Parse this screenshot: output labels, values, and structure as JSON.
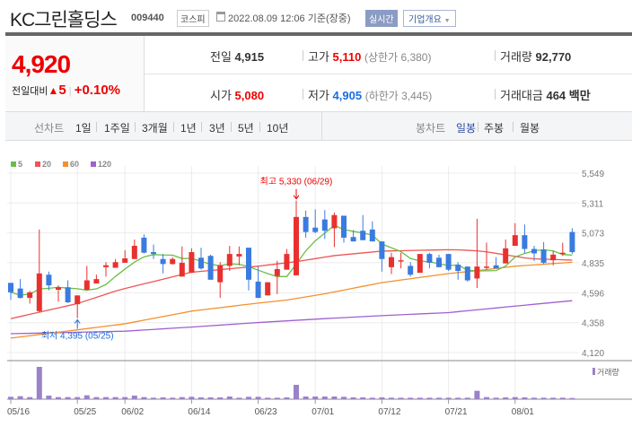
{
  "header": {
    "title": "KC그린홀딩스",
    "code": "009440",
    "market": "코스피",
    "timestamp": "2022.08.09 12:06",
    "basis": "기준(장중)",
    "realtime_label": "실시간",
    "company_button": "기업개요"
  },
  "quote": {
    "price": "4,920",
    "change_label": "전일대비",
    "change": "5",
    "change_pct": "+0.10%",
    "prev_label": "전일",
    "prev": "4,915",
    "high_label": "고가",
    "high": "5,110",
    "upper_limit": "(상한가 6,380)",
    "volume_label": "거래량",
    "volume": "92,770",
    "open_label": "시가",
    "open": "5,080",
    "low_label": "저가",
    "low": "4,905",
    "lower_limit": "(하한가 3,445)",
    "value_label": "거래대금",
    "value": "464",
    "value_unit": "백만"
  },
  "nav": {
    "line_chart": "선차트",
    "line_periods": [
      "1일",
      "1주일",
      "3개월",
      "1년",
      "3년",
      "5년",
      "10년"
    ],
    "candle_chart": "봉차트",
    "candle_periods": [
      "일봉",
      "주봉",
      "월봉"
    ],
    "selected": "일봉"
  },
  "colors": {
    "up": "#e8312f",
    "down": "#3a7be0",
    "ma5": "#6abf45",
    "ma20": "#ee5555",
    "ma60": "#f5902c",
    "ma120": "#a060d0",
    "volume": "#9a82c8"
  },
  "chart_data": {
    "type": "candlestick",
    "legend": [
      "5",
      "20",
      "60",
      "120"
    ],
    "ylim": [
      4120,
      5549
    ],
    "y_ticks": [
      "5,549",
      "5,311",
      "5,073",
      "4,835",
      "4,596",
      "4,358",
      "4,120"
    ],
    "y_tick_values": [
      5549,
      5311,
      5073,
      4835,
      4596,
      4358,
      4120
    ],
    "x_ticks": [
      {
        "i": 0,
        "label": "05/16"
      },
      {
        "i": 7,
        "label": "05/25"
      },
      {
        "i": 12,
        "label": "06/02"
      },
      {
        "i": 19,
        "label": "06/14"
      },
      {
        "i": 26,
        "label": "06/23"
      },
      {
        "i": 32,
        "label": "07/01"
      },
      {
        "i": 39,
        "label": "07/12"
      },
      {
        "i": 46,
        "label": "07/21"
      },
      {
        "i": 53,
        "label": "08/01"
      }
    ],
    "high_annotation": {
      "i": 30,
      "label": "최고 5,330 (06/29)"
    },
    "low_annotation": {
      "i": 7,
      "label": "최저 4,395 (05/25)"
    },
    "volume_label": "거래량",
    "ohlc": [
      [
        4675,
        4675,
        4540,
        4600
      ],
      [
        4630,
        4705,
        4550,
        4555
      ],
      [
        4555,
        4610,
        4510,
        4600
      ],
      [
        4450,
        5100,
        4440,
        4750
      ],
      [
        4740,
        4765,
        4615,
        4655
      ],
      [
        4620,
        4655,
        4525,
        4640
      ],
      [
        4640,
        4695,
        4515,
        4520
      ],
      [
        4505,
        4575,
        4395,
        4575
      ],
      [
        4620,
        4810,
        4615,
        4695
      ],
      [
        4670,
        4740,
        4670,
        4705
      ],
      [
        4800,
        4840,
        4725,
        4815
      ],
      [
        4795,
        4865,
        4795,
        4840
      ],
      [
        4835,
        4935,
        4835,
        4870
      ],
      [
        4865,
        5020,
        4865,
        4970
      ],
      [
        5035,
        5060,
        4910,
        4915
      ],
      [
        4920,
        4980,
        4865,
        4905
      ],
      [
        4865,
        4905,
        4750,
        4825
      ],
      [
        4825,
        4880,
        4820,
        4865
      ],
      [
        4725,
        4965,
        4725,
        4835
      ],
      [
        4755,
        4950,
        4755,
        4920
      ],
      [
        4875,
        4955,
        4780,
        4790
      ],
      [
        4890,
        4900,
        4700,
        4700
      ],
      [
        4680,
        4840,
        4555,
        4815
      ],
      [
        4810,
        4970,
        4770,
        4905
      ],
      [
        4885,
        4965,
        4815,
        4905
      ],
      [
        4955,
        4955,
        4615,
        4700
      ],
      [
        4685,
        4805,
        4555,
        4555
      ],
      [
        4575,
        4680,
        4575,
        4680
      ],
      [
        4730,
        4850,
        4585,
        4785
      ],
      [
        4780,
        4945,
        4780,
        4905
      ],
      [
        4735,
        5330,
        4735,
        5200
      ],
      [
        5200,
        5250,
        5035,
        5080
      ],
      [
        5115,
        5260,
        5070,
        5080
      ],
      [
        5180,
        5255,
        5025,
        5090
      ],
      [
        5110,
        5235,
        4960,
        5215
      ],
      [
        5210,
        5210,
        4995,
        5035
      ],
      [
        5040,
        5095,
        5005,
        5005
      ],
      [
        5090,
        5215,
        5015,
        5015
      ],
      [
        5100,
        5165,
        5005,
        5005
      ],
      [
        5005,
        5005,
        4765,
        4865
      ],
      [
        4800,
        4915,
        4745,
        4880
      ],
      [
        4850,
        4915,
        4790,
        4855
      ],
      [
        4810,
        4840,
        4725,
        4740
      ],
      [
        4755,
        4905,
        4755,
        4905
      ],
      [
        4905,
        4915,
        4790,
        4835
      ],
      [
        4875,
        4900,
        4800,
        4800
      ],
      [
        4905,
        4905,
        4770,
        4780
      ],
      [
        4820,
        4840,
        4700,
        4770
      ],
      [
        4805,
        4805,
        4685,
        4695
      ],
      [
        4710,
        5185,
        4635,
        4805
      ],
      [
        4800,
        4995,
        4780,
        4805
      ],
      [
        4815,
        4880,
        4790,
        4790
      ],
      [
        4830,
        5020,
        4830,
        4950
      ],
      [
        4970,
        5150,
        4970,
        5055
      ],
      [
        5055,
        5140,
        4910,
        4945
      ],
      [
        4945,
        4970,
        4850,
        4910
      ],
      [
        4940,
        5000,
        4825,
        4835
      ],
      [
        4855,
        4930,
        4815,
        4900
      ],
      [
        4905,
        4995,
        4890,
        4915
      ],
      [
        5080,
        5110,
        4905,
        4920
      ]
    ],
    "volume_thousands": [
      184,
      230,
      161,
      2484,
      276,
      161,
      161,
      161,
      299,
      161,
      161,
      161,
      161,
      276,
      161,
      115,
      138,
      115,
      161,
      184,
      138,
      138,
      138,
      207,
      115,
      184,
      184,
      115,
      115,
      138,
      1104,
      207,
      207,
      207,
      207,
      184,
      138,
      138,
      115,
      138,
      115,
      115,
      115,
      115,
      115,
      115,
      115,
      115,
      115,
      644,
      161,
      115,
      138,
      161,
      138,
      115,
      115,
      115,
      115,
      93
    ],
    "ma20": [
      [
        0,
        4390
      ],
      [
        7,
        4510
      ],
      [
        11.3,
        4617
      ],
      [
        19,
        4760
      ],
      [
        26,
        4808
      ],
      [
        30,
        4844
      ],
      [
        34,
        4892
      ],
      [
        39,
        4928
      ],
      [
        46.5,
        4940
      ],
      [
        49.5,
        4928
      ],
      [
        54.5,
        4868
      ],
      [
        59,
        4856
      ]
    ],
    "ma60": [
      [
        0,
        4235
      ],
      [
        7,
        4301
      ],
      [
        12,
        4349
      ],
      [
        19,
        4450
      ],
      [
        26,
        4514
      ],
      [
        29,
        4538
      ],
      [
        33,
        4588
      ],
      [
        39,
        4677
      ],
      [
        46,
        4749
      ],
      [
        49,
        4772
      ],
      [
        53,
        4808
      ],
      [
        59,
        4839
      ]
    ],
    "ma120": [
      [
        0,
        4270
      ],
      [
        12,
        4290
      ],
      [
        19,
        4323
      ],
      [
        26,
        4359
      ],
      [
        33,
        4390
      ],
      [
        39,
        4414
      ],
      [
        46,
        4438
      ],
      [
        53,
        4490
      ],
      [
        59,
        4533
      ]
    ]
  }
}
